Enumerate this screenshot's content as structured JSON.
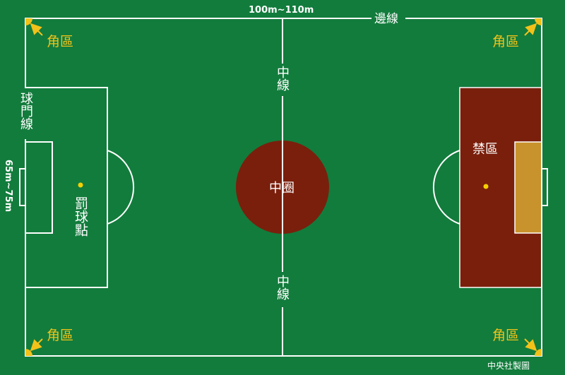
{
  "labels": {
    "length": "100m~110m",
    "touchline": "邊線",
    "width": "65m~75m",
    "goal_line": "球門線",
    "halfway_line": "中線",
    "center_circle": "中圈",
    "penalty_spot": "罰球點",
    "penalty_area": "禁區",
    "corner_area": "角區",
    "credit": "中央社製圖"
  },
  "colors": {
    "grass": "#127c3c",
    "line": "#ffffff",
    "highlight": "#7a1f0c",
    "goal_area": "#c8922c",
    "label_yellow": "#f2c21a",
    "spot": "#f5d000"
  },
  "icons": {
    "corner_arrow": "arrow-to-corner-icon",
    "penalty_spot": "dot-icon"
  }
}
